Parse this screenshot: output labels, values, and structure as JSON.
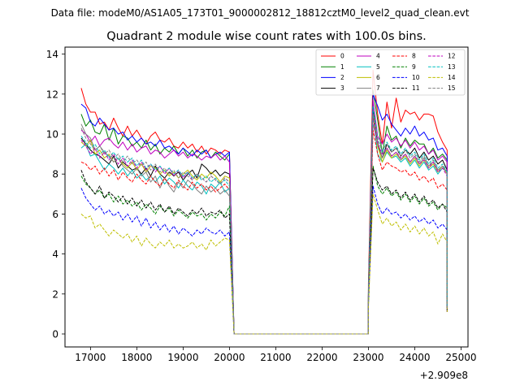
{
  "chart_data": {
    "type": "line",
    "suptitle": "Data file: modeM0/AS1A05_173T01_9000002812_18812cztM0_level2_quad_clean.evt",
    "title": "Quadrant 2 module wise count rates with 100.0s bins.",
    "xlabel": "",
    "ylabel": "",
    "x_offset_label": "+2.909e8",
    "xlim": [
      16450,
      25150
    ],
    "ylim": [
      -0.65,
      14.35
    ],
    "x_ticks": [
      17000,
      18000,
      19000,
      20000,
      21000,
      22000,
      23000,
      24000,
      25000
    ],
    "y_ticks": [
      0,
      2,
      4,
      6,
      8,
      10,
      12,
      14
    ],
    "grid": false,
    "legend": {
      "position": "top-right",
      "columns": 4,
      "entries": [
        "0",
        "1",
        "2",
        "3",
        "4",
        "5",
        "6",
        "7",
        "8",
        "9",
        "10",
        "11",
        "12",
        "13",
        "14",
        "15"
      ]
    },
    "gap": {
      "start": 20100,
      "end": 23000,
      "value": 0
    },
    "segment1": {
      "start": 16800,
      "end": 20000,
      "step": 100,
      "drop_x": 20100
    },
    "segment2": {
      "start": 23000,
      "end": 24700,
      "step": 100,
      "rise_x": 23000
    },
    "series": [
      {
        "name": "0",
        "color": "#ff0000",
        "dash": "solid",
        "seg1": [
          12.3,
          11.5,
          11.1,
          11.1,
          10.5,
          10.6,
          10.2,
          10.8,
          10.3,
          9.9,
          10.4,
          9.9,
          10.2,
          9.8,
          9.5,
          9.9,
          10.1,
          9.7,
          9.6,
          9.8,
          9.4,
          9.3,
          9.6,
          9.3,
          9.5,
          9.1,
          9.4,
          9.0,
          9.3,
          9.2,
          9.0,
          9.2,
          9.1
        ],
        "seg2": [
          2.5,
          13.2,
          11.0,
          9.5,
          11.6,
          10.3,
          11.8,
          10.6,
          11.2,
          11.0,
          11.1,
          10.7,
          11.0,
          11.0,
          10.9,
          10.1,
          9.6,
          9.2
        ],
        "end": 1.1
      },
      {
        "name": "1",
        "color": "#008000",
        "dash": "solid",
        "seg1": [
          11.0,
          10.4,
          10.7,
          10.1,
          10.0,
          10.5,
          9.7,
          10.3,
          9.5,
          9.9,
          9.8,
          9.4,
          9.6,
          9.3,
          9.7,
          9.2,
          9.5,
          9.0,
          9.3,
          9.1,
          9.4,
          9.0,
          9.3,
          8.9,
          9.2,
          8.8,
          9.1,
          9.2,
          8.8,
          9.1,
          8.9,
          8.7,
          9.0
        ],
        "seg2": [
          2.2,
          12.2,
          10.7,
          9.0,
          10.4,
          9.7,
          9.9,
          9.3,
          9.8,
          9.4,
          9.7,
          9.5,
          9.5,
          9.0,
          9.3,
          8.8,
          9.0,
          8.7
        ],
        "end": 1.5
      },
      {
        "name": "2",
        "color": "#0000ff",
        "dash": "solid",
        "seg1": [
          11.5,
          11.3,
          10.6,
          10.4,
          10.8,
          10.5,
          10.2,
          10.3,
          10.0,
          10.1,
          9.7,
          9.9,
          9.6,
          9.8,
          9.5,
          9.6,
          9.4,
          9.7,
          9.3,
          9.4,
          9.2,
          9.0,
          9.3,
          9.1,
          8.9,
          9.2,
          9.0,
          9.2,
          8.8,
          9.0,
          9.1,
          8.9,
          9.1
        ],
        "seg2": [
          2.0,
          12.0,
          11.4,
          10.7,
          11.0,
          10.5,
          10.2,
          9.9,
          10.3,
          10.0,
          10.4,
          9.9,
          10.1,
          9.7,
          9.8,
          9.2,
          9.3,
          8.9
        ],
        "end": 1.2
      },
      {
        "name": "3",
        "color": "#000000",
        "dash": "solid",
        "seg1": [
          9.8,
          9.5,
          9.2,
          9.0,
          8.9,
          8.7,
          8.5,
          8.9,
          8.3,
          8.6,
          8.4,
          8.2,
          8.3,
          8.0,
          8.3,
          7.9,
          8.4,
          8.0,
          7.8,
          8.1,
          7.9,
          8.1,
          7.7,
          8.0,
          8.2,
          7.8,
          8.5,
          8.3,
          8.0,
          8.2,
          7.9,
          8.1,
          8.0
        ],
        "seg2": [
          1.8,
          11.2,
          9.5,
          8.8,
          9.5,
          9.1,
          9.3,
          8.9,
          9.2,
          9.0,
          9.3,
          8.8,
          9.1,
          8.7,
          8.9,
          8.5,
          8.7,
          8.2
        ],
        "end": 1.5
      },
      {
        "name": "4",
        "color": "#bf00bf",
        "dash": "solid",
        "seg1": [
          10.2,
          10.0,
          9.6,
          9.9,
          9.4,
          9.7,
          9.8,
          9.5,
          9.3,
          9.6,
          9.2,
          9.5,
          9.1,
          9.3,
          9.4,
          9.0,
          9.2,
          9.1,
          8.8,
          9.0,
          9.2,
          8.9,
          9.1,
          8.8,
          9.0,
          8.9,
          8.7,
          8.9,
          8.8,
          9.0,
          8.7,
          8.9,
          8.6
        ],
        "seg2": [
          2.0,
          11.7,
          9.9,
          9.5,
          10.0,
          9.6,
          9.8,
          9.4,
          9.7,
          9.3,
          9.6,
          9.2,
          9.4,
          9.0,
          9.2,
          8.7,
          8.9,
          8.6
        ],
        "end": 1.4
      },
      {
        "name": "5",
        "color": "#00bfbf",
        "dash": "solid",
        "seg1": [
          9.3,
          9.5,
          8.9,
          9.0,
          8.6,
          8.2,
          8.5,
          8.3,
          8.0,
          8.3,
          7.9,
          8.2,
          7.8,
          8.0,
          7.7,
          7.9,
          7.6,
          7.9,
          7.5,
          7.8,
          7.6,
          7.3,
          7.7,
          7.4,
          7.2,
          7.6,
          7.4,
          7.0,
          7.5,
          7.3,
          7.6,
          7.1,
          7.3
        ],
        "seg2": [
          1.8,
          11.0,
          9.0,
          8.6,
          9.1,
          8.8,
          8.9,
          8.6,
          8.8,
          8.4,
          8.7,
          8.3,
          8.6,
          8.2,
          8.4,
          8.0,
          8.3,
          8.1
        ],
        "end": 1.3
      },
      {
        "name": "6",
        "color": "#bfbf00",
        "dash": "solid",
        "seg1": [
          9.6,
          9.4,
          9.7,
          9.0,
          9.2,
          8.8,
          9.0,
          8.6,
          8.8,
          8.5,
          8.3,
          8.6,
          8.2,
          8.5,
          8.1,
          8.4,
          8.3,
          8.0,
          8.2,
          7.9,
          8.1,
          7.8,
          8.0,
          8.2,
          7.9,
          7.7,
          8.0,
          7.8,
          8.1,
          7.9,
          7.6,
          7.9,
          7.8
        ],
        "seg2": [
          1.9,
          10.9,
          9.4,
          8.6,
          9.2,
          8.8,
          9.0,
          8.7,
          8.9,
          8.5,
          8.8,
          8.4,
          8.7,
          8.3,
          8.5,
          8.1,
          8.4,
          8.0
        ],
        "end": 1.2
      },
      {
        "name": "7",
        "color": "#808080",
        "dash": "solid",
        "seg1": [
          10.5,
          10.0,
          9.8,
          9.2,
          9.4,
          9.1,
          8.9,
          8.6,
          8.8,
          8.4,
          8.2,
          8.0,
          8.3,
          7.9,
          8.1,
          7.6,
          7.9,
          7.3,
          7.8,
          7.4,
          7.1,
          7.6,
          7.3,
          7.7,
          7.5,
          7.2,
          7.0,
          7.4,
          7.1,
          7.3,
          7.0,
          7.2,
          6.9
        ],
        "seg2": [
          1.7,
          10.5,
          9.6,
          8.8,
          9.3,
          8.9,
          9.1,
          8.7,
          9.0,
          8.6,
          8.9,
          8.5,
          8.8,
          8.4,
          8.6,
          8.2,
          8.4,
          8.1
        ],
        "end": 1.3
      },
      {
        "name": "8",
        "color": "#ff0000",
        "dash": "dashed",
        "seg1": [
          8.6,
          8.5,
          8.2,
          8.4,
          8.0,
          8.3,
          7.9,
          8.2,
          7.7,
          8.1,
          7.8,
          7.6,
          8.0,
          7.7,
          7.5,
          7.9,
          7.6,
          7.4,
          7.8,
          7.5,
          7.3,
          7.7,
          7.4,
          7.2,
          7.6,
          7.3,
          7.5,
          7.2,
          7.4,
          7.1,
          7.3,
          7.5,
          7.2
        ],
        "seg2": [
          1.8,
          10.2,
          9.0,
          8.2,
          8.6,
          8.4,
          8.3,
          8.1,
          8.2,
          7.9,
          8.1,
          7.7,
          7.9,
          7.6,
          7.8,
          7.3,
          7.5,
          7.2
        ],
        "end": 1.4
      },
      {
        "name": "9",
        "color": "#008000",
        "dash": "dashed",
        "seg1": [
          7.9,
          7.5,
          7.3,
          7.0,
          7.2,
          6.8,
          7.0,
          6.6,
          6.9,
          6.5,
          6.7,
          6.4,
          6.6,
          6.2,
          6.5,
          6.3,
          6.0,
          6.4,
          6.1,
          6.3,
          5.9,
          6.2,
          6.0,
          5.8,
          6.1,
          5.9,
          6.0,
          5.7,
          6.0,
          5.8,
          6.1,
          5.9,
          6.4
        ],
        "seg2": [
          1.5,
          8.4,
          7.4,
          7.0,
          7.3,
          6.9,
          7.1,
          6.7,
          7.0,
          6.6,
          6.9,
          6.5,
          6.8,
          6.4,
          6.6,
          6.2,
          6.5,
          6.3
        ],
        "end": 1.3
      },
      {
        "name": "10",
        "color": "#0000ff",
        "dash": "dashed",
        "seg1": [
          7.3,
          6.8,
          6.5,
          6.2,
          6.4,
          6.0,
          6.2,
          5.9,
          6.1,
          5.7,
          6.0,
          5.6,
          5.9,
          5.4,
          5.8,
          5.3,
          5.6,
          5.2,
          5.5,
          5.1,
          5.4,
          5.0,
          5.3,
          5.1,
          4.9,
          5.2,
          5.0,
          5.3,
          5.1,
          5.0,
          5.2,
          4.9,
          5.1
        ],
        "seg2": [
          1.4,
          7.4,
          6.5,
          6.0,
          6.3,
          6.0,
          6.1,
          5.8,
          6.0,
          5.7,
          5.9,
          5.6,
          5.8,
          5.5,
          5.7,
          5.3,
          5.5,
          5.2
        ],
        "end": 1.1
      },
      {
        "name": "11",
        "color": "#000000",
        "dash": "dashed",
        "seg1": [
          8.2,
          7.6,
          7.3,
          7.0,
          7.4,
          6.8,
          7.1,
          6.9,
          6.6,
          6.9,
          6.5,
          6.8,
          6.4,
          6.7,
          6.3,
          6.6,
          6.2,
          6.5,
          6.1,
          6.4,
          6.0,
          6.3,
          6.1,
          5.9,
          6.2,
          6.0,
          6.3,
          5.9,
          6.1,
          6.0,
          6.2,
          5.8,
          6.0
        ],
        "seg2": [
          1.6,
          8.3,
          7.6,
          7.2,
          7.4,
          7.0,
          7.2,
          6.8,
          7.1,
          6.7,
          7.0,
          6.6,
          6.9,
          6.5,
          6.7,
          6.3,
          6.5,
          6.1
        ],
        "end": 1.2
      },
      {
        "name": "12",
        "color": "#bf00bf",
        "dash": "dashed",
        "seg1": [
          9.7,
          9.4,
          9.0,
          9.3,
          8.8,
          9.1,
          8.7,
          9.0,
          8.5,
          8.8,
          8.4,
          8.7,
          8.3,
          8.6,
          8.2,
          8.5,
          8.1,
          8.4,
          8.0,
          8.3,
          7.9,
          8.2,
          7.8,
          8.1,
          7.7,
          8.0,
          7.8,
          7.6,
          7.9,
          7.7,
          7.5,
          7.8,
          7.6
        ],
        "seg2": [
          1.9,
          10.8,
          9.5,
          9.0,
          9.3,
          8.9,
          9.1,
          8.8,
          9.0,
          8.6,
          8.9,
          8.5,
          8.7,
          8.3,
          8.6,
          8.1,
          8.3,
          7.9
        ],
        "end": 1.3
      },
      {
        "name": "13",
        "color": "#00bfbf",
        "dash": "dashed",
        "seg1": [
          9.9,
          9.6,
          9.3,
          9.5,
          9.0,
          9.2,
          8.8,
          9.1,
          8.7,
          8.9,
          8.6,
          8.8,
          8.4,
          8.7,
          8.3,
          8.5,
          8.2,
          8.4,
          8.1,
          8.3,
          8.0,
          8.2,
          7.9,
          8.1,
          7.8,
          8.0,
          7.7,
          7.9,
          7.6,
          7.8,
          7.5,
          7.7,
          7.4
        ],
        "seg2": [
          1.9,
          11.4,
          9.8,
          9.1,
          9.6,
          9.2,
          9.4,
          9.0,
          9.3,
          8.9,
          9.1,
          8.7,
          9.0,
          8.5,
          8.8,
          8.3,
          8.5,
          8.1
        ],
        "end": 1.4
      },
      {
        "name": "14",
        "color": "#bfbf00",
        "dash": "dashed",
        "seg1": [
          6.0,
          5.8,
          5.9,
          5.3,
          5.5,
          5.2,
          4.9,
          5.2,
          5.0,
          4.8,
          5.0,
          4.6,
          4.9,
          4.4,
          4.8,
          4.5,
          4.3,
          4.6,
          4.4,
          4.7,
          4.3,
          4.5,
          4.3,
          4.4,
          4.6,
          4.3,
          4.5,
          4.2,
          4.7,
          4.4,
          4.6,
          4.8,
          4.7
        ],
        "seg2": [
          1.3,
          7.0,
          6.2,
          5.5,
          5.8,
          5.4,
          5.6,
          5.2,
          5.5,
          5.1,
          5.4,
          5.0,
          5.3,
          4.9,
          5.1,
          4.5,
          5.0,
          4.6
        ],
        "end": 1.1
      },
      {
        "name": "15",
        "color": "#808080",
        "dash": "dashed",
        "seg1": [
          10.3,
          9.8,
          9.5,
          9.2,
          9.4,
          9.0,
          9.2,
          8.8,
          9.0,
          8.6,
          8.9,
          8.5,
          8.7,
          8.4,
          8.6,
          8.2,
          8.5,
          8.1,
          8.3,
          8.0,
          8.2,
          7.8,
          8.1,
          7.9,
          7.7,
          8.0,
          7.8,
          7.6,
          7.9,
          7.7,
          7.5,
          7.8,
          7.6
        ],
        "seg2": [
          1.9,
          11.0,
          9.7,
          9.2,
          9.5,
          9.1,
          9.3,
          8.9,
          9.2,
          8.8,
          9.0,
          8.6,
          8.9,
          8.4,
          8.7,
          8.2,
          8.4,
          8.0
        ],
        "end": 1.3
      }
    ]
  }
}
